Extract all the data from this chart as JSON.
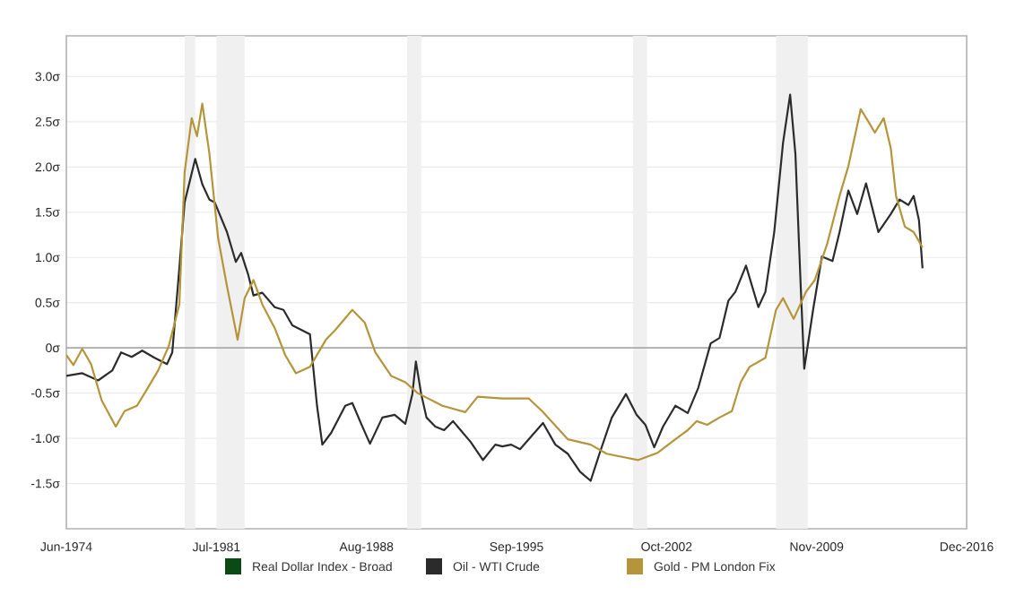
{
  "chart_data": {
    "type": "line",
    "xlim": [
      "1974-06",
      "2016-12"
    ],
    "xticks": [
      {
        "value": "1974-06",
        "label": "Jun-1974"
      },
      {
        "value": "1981-07",
        "label": "Jul-1981"
      },
      {
        "value": "1988-08",
        "label": "Aug-1988"
      },
      {
        "value": "1995-09",
        "label": "Sep-1995"
      },
      {
        "value": "2002-10",
        "label": "Oct-2002"
      },
      {
        "value": "2009-11",
        "label": "Nov-2009"
      },
      {
        "value": "2016-12",
        "label": "Dec-2016"
      }
    ],
    "ylim": [
      -2.0,
      3.45
    ],
    "yticks": [
      {
        "value": -1.5,
        "label": "-1.5σ"
      },
      {
        "value": -1.0,
        "label": "-1.0σ"
      },
      {
        "value": -0.5,
        "label": "-0.5σ"
      },
      {
        "value": 0,
        "label": "0σ"
      },
      {
        "value": 0.5,
        "label": "0.5σ"
      },
      {
        "value": 1.0,
        "label": "1.0σ"
      },
      {
        "value": 1.5,
        "label": "1.5σ"
      },
      {
        "value": 2.0,
        "label": "2.0σ"
      },
      {
        "value": 2.5,
        "label": "2.5σ"
      },
      {
        "value": 3.0,
        "label": "3.0σ"
      }
    ],
    "grid": "y",
    "legend": "bottom",
    "ref_lines": [
      {
        "axis": "y",
        "value": 0,
        "color": "#aaaaaa"
      }
    ],
    "bands": [
      {
        "axis": "x",
        "from": "1980-01",
        "to": "1980-07",
        "color": "#f0f0f0"
      },
      {
        "axis": "x",
        "from": "1981-07",
        "to": "1982-11",
        "color": "#f0f0f0"
      },
      {
        "axis": "x",
        "from": "1990-07",
        "to": "1991-03",
        "color": "#f0f0f0"
      },
      {
        "axis": "x",
        "from": "2001-03",
        "to": "2001-11",
        "color": "#f0f0f0"
      },
      {
        "axis": "x",
        "from": "2007-12",
        "to": "2009-06",
        "color": "#f0f0f0"
      }
    ],
    "series": [
      {
        "name": "Real Dollar Index - Broad",
        "color": "#0b4a14"
      },
      {
        "name": "Oil - WTI Crude",
        "color": "#2b2b2b",
        "x": [
          "1974-06",
          "1975-03",
          "1975-12",
          "1976-08",
          "1977-01",
          "1977-07",
          "1978-01",
          "1978-08",
          "1979-03",
          "1979-06",
          "1979-10",
          "1980-01",
          "1980-07",
          "1980-11",
          "1981-03",
          "1981-06",
          "1982-01",
          "1982-06",
          "1982-09",
          "1983-01",
          "1983-04",
          "1983-09",
          "1984-04",
          "1984-09",
          "1985-02",
          "1985-10",
          "1985-12",
          "1986-04",
          "1986-07",
          "1986-12",
          "1987-08",
          "1987-12",
          "1988-05",
          "1988-10",
          "1989-05",
          "1989-12",
          "1990-06",
          "1990-10",
          "1990-12",
          "1991-03",
          "1991-06",
          "1991-11",
          "1992-04",
          "1992-09",
          "1993-07",
          "1994-02",
          "1994-09",
          "1995-01",
          "1995-06",
          "1995-11",
          "1996-04",
          "1996-12",
          "1997-07",
          "1998-02",
          "1998-09",
          "1999-03",
          "1999-08",
          "2000-03",
          "2000-11",
          "2001-05",
          "2001-10",
          "2002-03",
          "2002-08",
          "2003-03",
          "2003-10",
          "2004-04",
          "2004-11",
          "2005-04",
          "2005-09",
          "2006-01",
          "2006-07",
          "2007-02",
          "2007-06",
          "2007-11",
          "2008-04",
          "2008-08",
          "2008-11",
          "2009-02",
          "2009-04",
          "2009-09",
          "2010-02",
          "2010-08",
          "2010-12",
          "2011-05",
          "2011-10",
          "2012-03",
          "2012-10",
          "2013-05",
          "2013-10",
          "2014-03",
          "2014-06",
          "2014-09",
          "2014-11"
        ],
        "values": [
          -0.31,
          -0.28,
          -0.36,
          -0.25,
          -0.05,
          -0.1,
          -0.03,
          -0.11,
          -0.18,
          -0.05,
          0.88,
          1.61,
          2.09,
          1.81,
          1.64,
          1.61,
          1.28,
          0.95,
          1.05,
          0.81,
          0.58,
          0.61,
          0.45,
          0.42,
          0.25,
          0.17,
          0.15,
          -0.64,
          -1.07,
          -0.94,
          -0.64,
          -0.61,
          -0.84,
          -1.06,
          -0.77,
          -0.74,
          -0.84,
          -0.51,
          -0.15,
          -0.51,
          -0.77,
          -0.87,
          -0.91,
          -0.81,
          -1.04,
          -1.24,
          -1.07,
          -1.09,
          -1.07,
          -1.12,
          -1.01,
          -0.83,
          -1.07,
          -1.17,
          -1.37,
          -1.47,
          -1.17,
          -0.77,
          -0.51,
          -0.74,
          -0.85,
          -1.1,
          -0.87,
          -0.64,
          -0.72,
          -0.44,
          0.05,
          0.11,
          0.52,
          0.62,
          0.91,
          0.45,
          0.62,
          1.28,
          2.27,
          2.8,
          2.14,
          0.68,
          -0.23,
          0.42,
          1.01,
          0.96,
          1.28,
          1.74,
          1.48,
          1.82,
          1.28,
          1.48,
          1.64,
          1.58,
          1.68,
          1.41,
          0.88
        ]
      },
      {
        "name": "Gold - PM London Fix",
        "color": "#b5953a",
        "x": [
          "1974-06",
          "1974-10",
          "1975-03",
          "1975-08",
          "1976-02",
          "1976-10",
          "1977-03",
          "1977-10",
          "1978-03",
          "1978-10",
          "1979-04",
          "1979-10",
          "1980-01",
          "1980-05",
          "1980-08",
          "1980-11",
          "1981-03",
          "1981-08",
          "1982-01",
          "1982-07",
          "1982-11",
          "1983-04",
          "1983-09",
          "1984-04",
          "1984-10",
          "1985-04",
          "1985-12",
          "1986-09",
          "1987-02",
          "1987-12",
          "1988-07",
          "1989-01",
          "1989-10",
          "1990-06",
          "1991-01",
          "1992-03",
          "1993-04",
          "1993-11",
          "1995-01",
          "1996-04",
          "1996-12",
          "1998-02",
          "1999-03",
          "1999-12",
          "2000-10",
          "2001-06",
          "2002-05",
          "2003-03",
          "2003-10",
          "2004-03",
          "2004-09",
          "2005-04",
          "2005-11",
          "2006-04",
          "2006-09",
          "2007-06",
          "2007-12",
          "2008-04",
          "2008-10",
          "2009-05",
          "2009-10",
          "2010-05",
          "2010-12",
          "2011-05",
          "2011-12",
          "2012-05",
          "2012-08",
          "2013-01",
          "2013-05",
          "2013-08",
          "2014-01",
          "2014-06",
          "2014-11"
        ],
        "values": [
          -0.08,
          -0.19,
          -0.01,
          -0.18,
          -0.58,
          -0.87,
          -0.7,
          -0.64,
          -0.48,
          -0.25,
          0.02,
          0.48,
          1.94,
          2.54,
          2.34,
          2.7,
          2.15,
          1.21,
          0.68,
          0.09,
          0.55,
          0.75,
          0.48,
          0.22,
          -0.08,
          -0.28,
          -0.21,
          0.09,
          0.19,
          0.42,
          0.28,
          -0.05,
          -0.31,
          -0.38,
          -0.5,
          -0.64,
          -0.71,
          -0.54,
          -0.56,
          -0.56,
          -0.71,
          -1.01,
          -1.07,
          -1.17,
          -1.21,
          -1.24,
          -1.16,
          -1.01,
          -0.91,
          -0.81,
          -0.85,
          -0.77,
          -0.7,
          -0.38,
          -0.21,
          -0.11,
          0.42,
          0.55,
          0.32,
          0.62,
          0.75,
          1.15,
          1.68,
          2.01,
          2.64,
          2.48,
          2.38,
          2.54,
          2.21,
          1.68,
          1.34,
          1.28,
          1.11
        ]
      }
    ]
  }
}
